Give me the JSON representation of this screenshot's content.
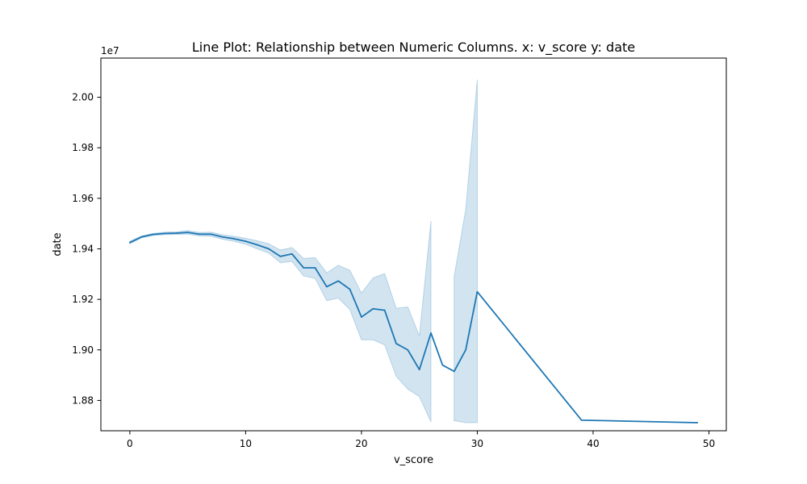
{
  "chart_data": {
    "type": "line",
    "title": "Line Plot: Relationship between Numeric Columns. x: v_score y: date",
    "xlabel": "v_score",
    "ylabel": "date",
    "y_offset_label": "1e7",
    "xlim": [
      -2.5,
      51.5
    ],
    "ylim": [
      18.68,
      20.155
    ],
    "x_ticks": [
      0,
      10,
      20,
      30,
      40,
      50
    ],
    "x_tick_labels": [
      "0",
      "10",
      "20",
      "30",
      "40",
      "50"
    ],
    "y_ticks": [
      18.8,
      19.0,
      19.2,
      19.4,
      19.6,
      19.8,
      20.0
    ],
    "y_tick_labels": [
      "1.88",
      "1.90",
      "1.92",
      "1.94",
      "1.96",
      "1.98",
      "2.00"
    ],
    "grid": false,
    "colors": {
      "line": "#1f77b4",
      "band": "#1f77b4"
    },
    "series": [
      {
        "values": [
          {
            "x": 0,
            "y": 19.425
          },
          {
            "x": 1,
            "y": 19.447
          },
          {
            "x": 2,
            "y": 19.457
          },
          {
            "x": 3,
            "y": 19.461
          },
          {
            "x": 4,
            "y": 19.462
          },
          {
            "x": 5,
            "y": 19.465
          },
          {
            "x": 6,
            "y": 19.458
          },
          {
            "x": 7,
            "y": 19.458
          },
          {
            "x": 8,
            "y": 19.447
          },
          {
            "x": 9,
            "y": 19.44
          },
          {
            "x": 10,
            "y": 19.43
          },
          {
            "x": 11,
            "y": 19.416
          },
          {
            "x": 12,
            "y": 19.4
          },
          {
            "x": 13,
            "y": 19.37
          },
          {
            "x": 14,
            "y": 19.38
          },
          {
            "x": 15,
            "y": 19.325
          },
          {
            "x": 16,
            "y": 19.325
          },
          {
            "x": 17,
            "y": 19.25
          },
          {
            "x": 18,
            "y": 19.273
          },
          {
            "x": 19,
            "y": 19.24
          },
          {
            "x": 20,
            "y": 19.13
          },
          {
            "x": 21,
            "y": 19.163
          },
          {
            "x": 22,
            "y": 19.157
          },
          {
            "x": 23,
            "y": 19.025
          },
          {
            "x": 24,
            "y": 19.0
          },
          {
            "x": 25,
            "y": 18.922
          },
          {
            "x": 26,
            "y": 19.067
          },
          {
            "x": 27,
            "y": 18.94
          },
          {
            "x": 28,
            "y": 18.915
          },
          {
            "x": 29,
            "y": 19.0
          },
          {
            "x": 30,
            "y": 19.23
          },
          {
            "x": 39,
            "y": 18.722
          },
          {
            "x": 49,
            "y": 18.712
          }
        ],
        "band": [
          [
            {
              "x": 0,
              "y_low": 19.42,
              "y_high": 19.43
            },
            {
              "x": 1,
              "y_low": 19.443,
              "y_high": 19.451
            },
            {
              "x": 2,
              "y_low": 19.453,
              "y_high": 19.461
            },
            {
              "x": 3,
              "y_low": 19.456,
              "y_high": 19.466
            },
            {
              "x": 4,
              "y_low": 19.457,
              "y_high": 19.467
            },
            {
              "x": 5,
              "y_low": 19.458,
              "y_high": 19.472
            },
            {
              "x": 6,
              "y_low": 19.451,
              "y_high": 19.465
            },
            {
              "x": 7,
              "y_low": 19.45,
              "y_high": 19.466
            },
            {
              "x": 8,
              "y_low": 19.438,
              "y_high": 19.456
            },
            {
              "x": 9,
              "y_low": 19.43,
              "y_high": 19.45
            },
            {
              "x": 10,
              "y_low": 19.418,
              "y_high": 19.442
            },
            {
              "x": 11,
              "y_low": 19.4,
              "y_high": 19.432
            },
            {
              "x": 12,
              "y_low": 19.383,
              "y_high": 19.42
            },
            {
              "x": 13,
              "y_low": 19.345,
              "y_high": 19.395
            },
            {
              "x": 14,
              "y_low": 19.35,
              "y_high": 19.405
            },
            {
              "x": 15,
              "y_low": 19.293,
              "y_high": 19.362
            },
            {
              "x": 16,
              "y_low": 19.283,
              "y_high": 19.365
            },
            {
              "x": 17,
              "y_low": 19.195,
              "y_high": 19.305
            },
            {
              "x": 18,
              "y_low": 19.205,
              "y_high": 19.335
            },
            {
              "x": 19,
              "y_low": 19.16,
              "y_high": 19.315
            },
            {
              "x": 20,
              "y_low": 19.04,
              "y_high": 19.225
            },
            {
              "x": 21,
              "y_low": 19.04,
              "y_high": 19.285
            },
            {
              "x": 22,
              "y_low": 19.02,
              "y_high": 19.302
            },
            {
              "x": 23,
              "y_low": 18.895,
              "y_high": 19.165
            },
            {
              "x": 24,
              "y_low": 18.845,
              "y_high": 19.17
            },
            {
              "x": 25,
              "y_low": 18.815,
              "y_high": 19.055
            },
            {
              "x": 26,
              "y_low": 18.715,
              "y_high": 19.51
            }
          ],
          [
            {
              "x": 28,
              "y_low": 18.72,
              "y_high": 19.29
            },
            {
              "x": 29,
              "y_low": 18.712,
              "y_high": 19.555
            },
            {
              "x": 30,
              "y_low": 18.712,
              "y_high": 20.07
            }
          ]
        ]
      }
    ]
  }
}
